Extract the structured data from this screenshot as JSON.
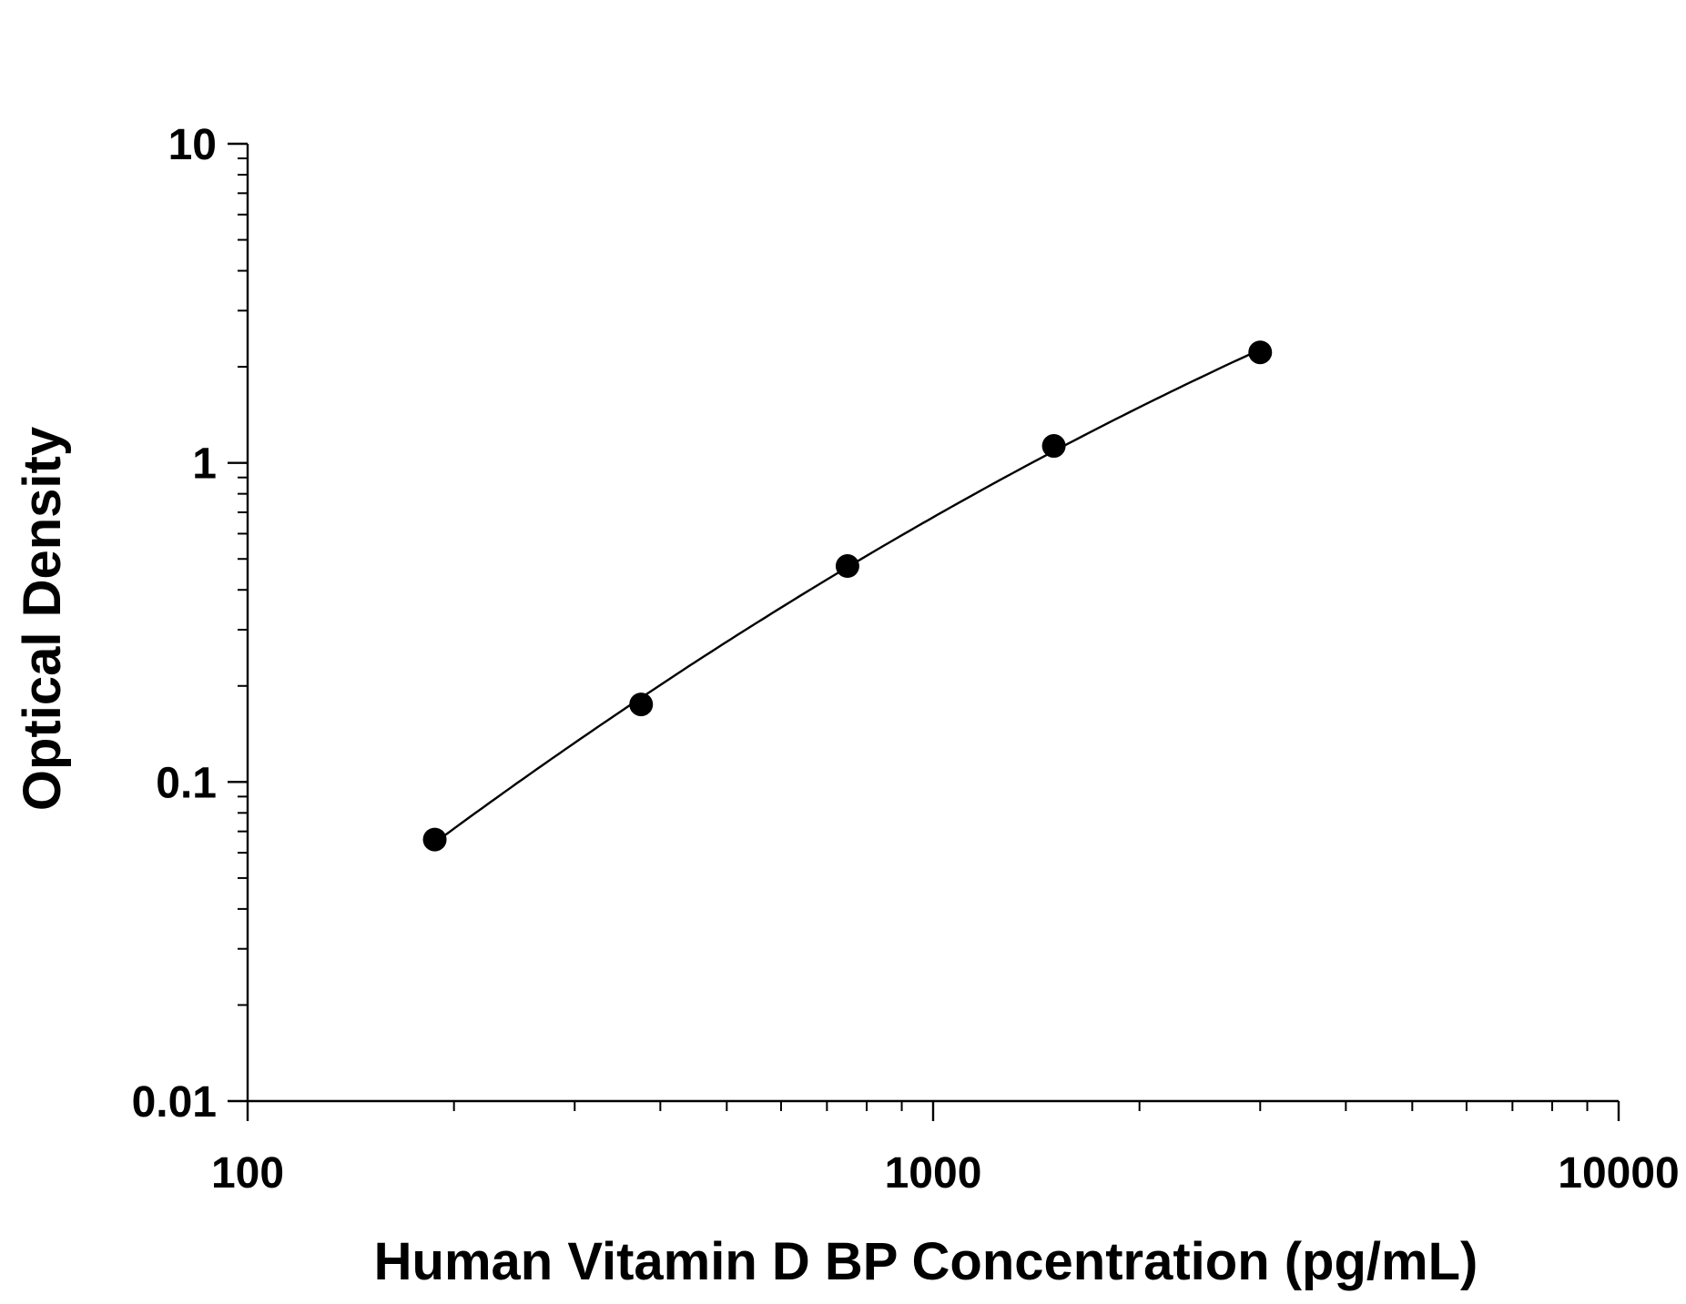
{
  "chart_data": {
    "type": "scatter",
    "title": "",
    "xlabel": "Human Vitamin D BP Concentration (pg/mL)",
    "ylabel": "Optical Density",
    "xscale": "log",
    "yscale": "log",
    "xlim": [
      100,
      10000
    ],
    "ylim": [
      0.01,
      10
    ],
    "grid": false,
    "legend": "none",
    "x_ticks": [
      100,
      1000,
      10000
    ],
    "x_tick_labels": [
      "100",
      "1000",
      "10000"
    ],
    "y_ticks": [
      0.01,
      0.1,
      1,
      10
    ],
    "y_tick_labels": [
      "0.01",
      "0.1",
      "1",
      "10"
    ],
    "series": [
      {
        "x": [
          187.5,
          375,
          750,
          1500,
          3000
        ],
        "y": [
          0.066,
          0.175,
          0.475,
          1.13,
          2.22
        ],
        "marker": "filled-circle",
        "fit_line": "smooth-curve"
      }
    ],
    "colors": {
      "marker": "#000000",
      "line": "#000000",
      "axis": "#000000"
    }
  }
}
